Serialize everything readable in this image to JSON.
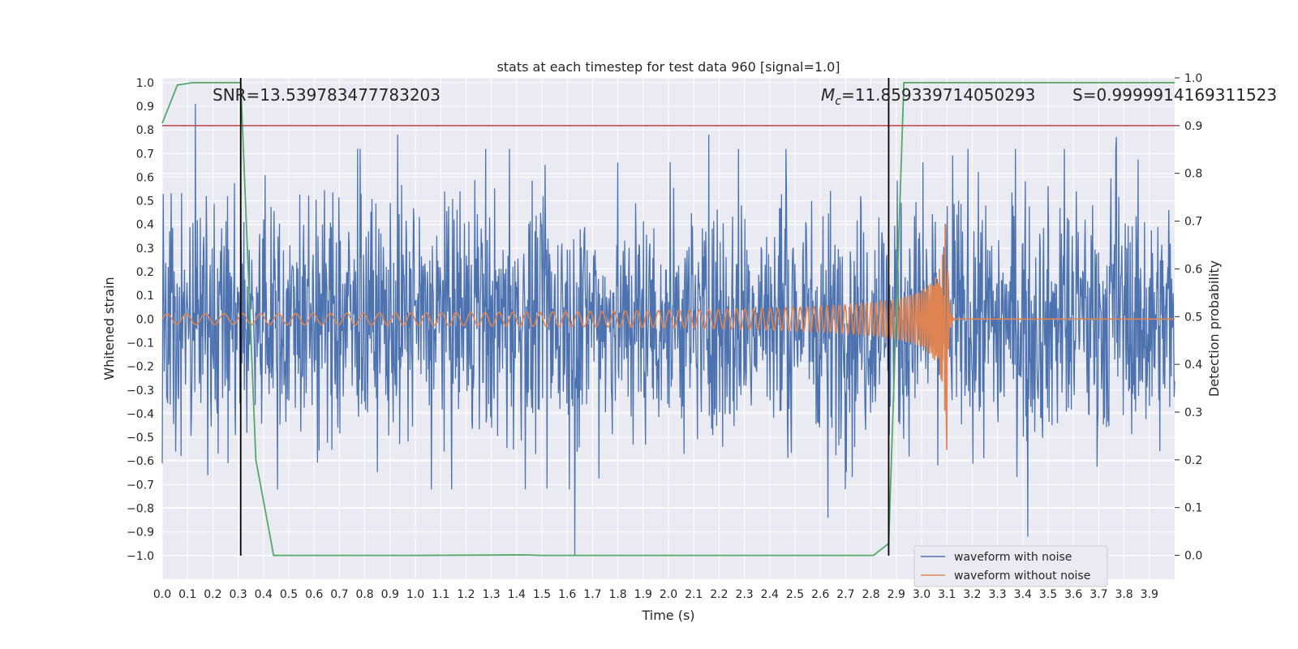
{
  "chart_data": {
    "type": "line",
    "title": "stats at each timestep for test data 960 [signal=1.0]",
    "xlabel": "Time (s)",
    "ylabel": "Whitened strain",
    "ylabel_right": "Detection probability",
    "xlim": [
      0.0,
      4.0
    ],
    "ylim": [
      -1.1,
      1.02
    ],
    "ylim_right": [
      -0.05,
      1.0
    ],
    "x_ticks": [
      "0.0",
      "0.1",
      "0.2",
      "0.3",
      "0.4",
      "0.5",
      "0.6",
      "0.7",
      "0.8",
      "0.9",
      "1.0",
      "1.1",
      "1.2",
      "1.3",
      "1.4",
      "1.5",
      "1.6",
      "1.7",
      "1.8",
      "1.9",
      "2.0",
      "2.1",
      "2.2",
      "2.3",
      "2.4",
      "2.5",
      "2.6",
      "2.7",
      "2.8",
      "2.9",
      "3.0",
      "3.1",
      "3.2",
      "3.3",
      "3.4",
      "3.5",
      "3.6",
      "3.7",
      "3.8",
      "3.9"
    ],
    "y_ticks": [
      "1.0",
      "0.9",
      "0.8",
      "0.7",
      "0.6",
      "0.5",
      "0.4",
      "0.3",
      "0.2",
      "0.1",
      "0.0",
      "−0.1",
      "−0.2",
      "−0.3",
      "−0.4",
      "−0.5",
      "−0.6",
      "−0.7",
      "−0.8",
      "−0.9",
      "−1.0"
    ],
    "y_ticks_right": [
      "1.0",
      "0.9",
      "0.8",
      "0.7",
      "0.6",
      "0.5",
      "0.4",
      "0.3",
      "0.2",
      "0.1",
      "0.0"
    ],
    "annotations": {
      "snr": "SNR=13.539783477783203",
      "mc_symbol": "M",
      "mc_sub": "c",
      "mc_value": "=11.859339714050293",
      "s": "S=0.9999914169311523"
    },
    "series": [
      {
        "name": "waveform with noise",
        "color": "#4c72b0",
        "kind": "noise",
        "amplitude": 0.25,
        "spikes": [
          [
            0.13,
            0.91
          ],
          [
            0.31,
            0.36
          ],
          [
            0.93,
            0.78
          ],
          [
            1.63,
            -1.0
          ],
          [
            2.16,
            0.78
          ],
          [
            2.63,
            -0.84
          ],
          [
            3.42,
            -0.92
          ],
          [
            3.77,
            0.77
          ]
        ]
      },
      {
        "name": "waveform without noise",
        "color": "#dd8452",
        "kind": "chirp",
        "merger_time": 3.1,
        "peak_amplitude": 0.42,
        "min_amplitude": -0.56
      },
      {
        "name": "detection probability",
        "color": "#55a868",
        "axis": "right",
        "x": [
          0.0,
          0.06,
          0.12,
          0.2,
          0.31,
          0.37,
          0.44,
          1.0,
          1.43,
          1.5,
          2.0,
          2.5,
          2.81,
          2.87,
          2.93,
          3.0,
          3.5,
          4.0
        ],
        "values": [
          0.905,
          0.985,
          0.99,
          0.99,
          0.99,
          0.2,
          0.0,
          0.0,
          0.001,
          0.0,
          0.0,
          0.0,
          0.0,
          0.025,
          0.99,
          0.99,
          0.99,
          0.99
        ]
      }
    ],
    "threshold": {
      "value": 0.9,
      "axis": "right",
      "color": "#c44e52"
    },
    "vlines": [
      0.31,
      2.87
    ],
    "legend_position": "lower-right"
  }
}
